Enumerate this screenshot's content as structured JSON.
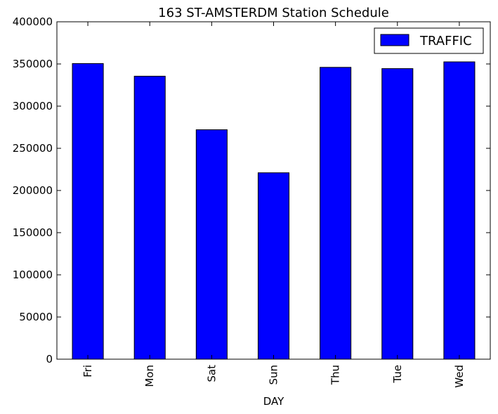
{
  "chart_data": {
    "type": "bar",
    "title": "163 ST-AMSTERDM Station Schedule",
    "xlabel": "DAY",
    "ylabel": "",
    "categories": [
      "Fri",
      "Mon",
      "Sat",
      "Sun",
      "Thu",
      "Tue",
      "Wed"
    ],
    "series": [
      {
        "name": "TRAFFIC",
        "values": [
          350500,
          335500,
          272000,
          221000,
          346000,
          344500,
          352500
        ],
        "color": "#0000ff"
      }
    ],
    "ylim": [
      0,
      400000
    ],
    "yticks": [
      0,
      50000,
      100000,
      150000,
      200000,
      250000,
      300000,
      350000,
      400000
    ],
    "grid": false,
    "legend_position": "top-right"
  }
}
